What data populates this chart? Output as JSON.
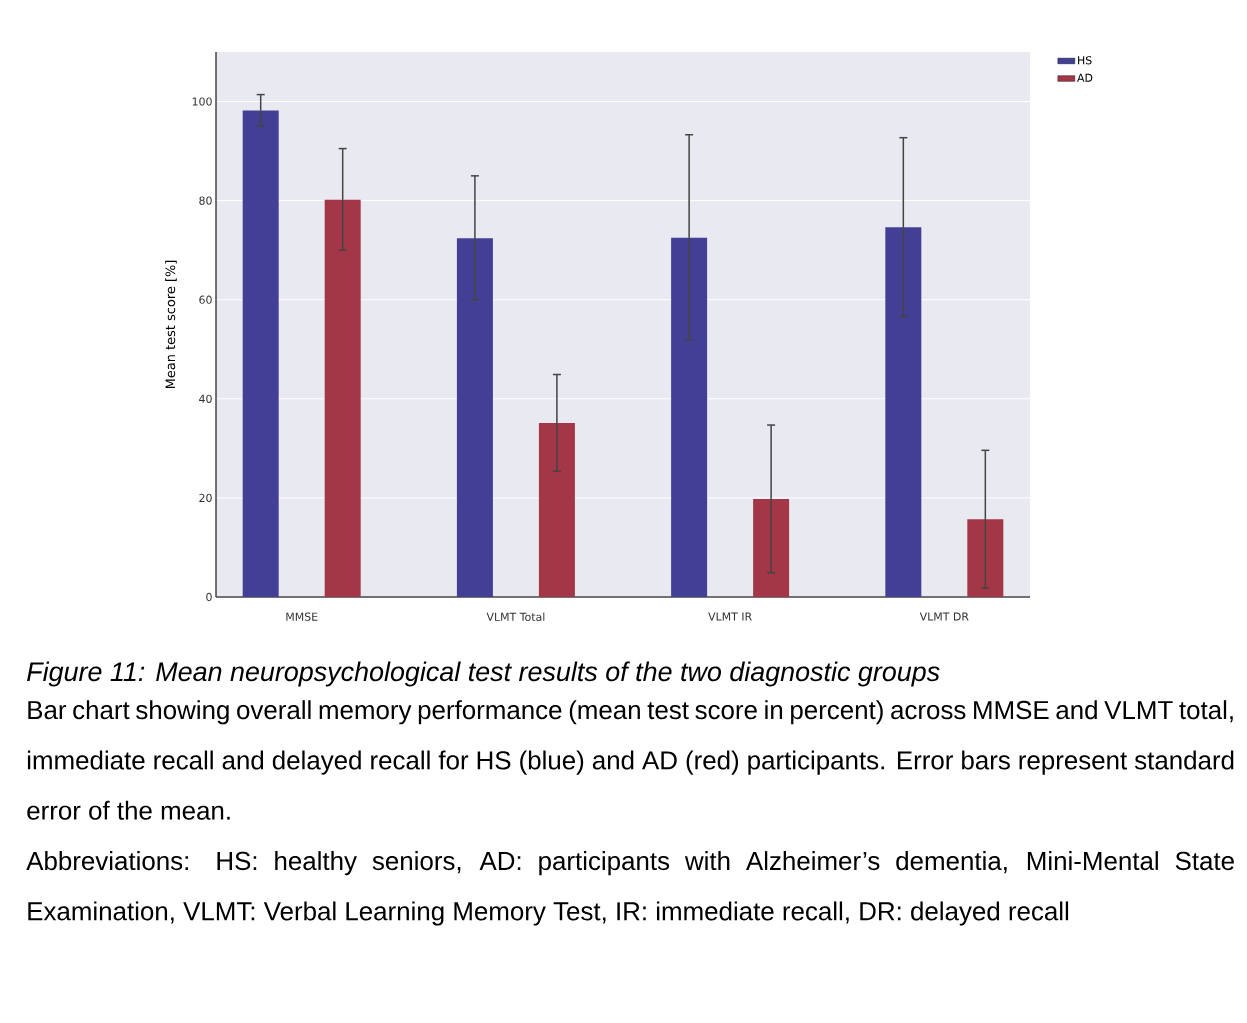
{
  "chart_data": {
    "type": "bar",
    "categories": [
      "MMSE",
      "VLMT Total",
      "VLMT IR",
      "VLMT DR"
    ],
    "series": [
      {
        "name": "HS",
        "color": "#423f94",
        "values": [
          98.2,
          72.4,
          72.5,
          74.6
        ],
        "errors": [
          [
            95.1,
            101.4
          ],
          [
            60.0,
            85.0
          ],
          [
            51.9,
            93.3
          ],
          [
            56.6,
            92.7
          ]
        ]
      },
      {
        "name": "AD",
        "color": "#a33748",
        "values": [
          80.2,
          35.1,
          19.8,
          15.7
        ],
        "errors": [
          [
            70.0,
            90.5
          ],
          [
            25.4,
            44.9
          ],
          [
            4.9,
            34.7
          ],
          [
            1.8,
            29.6
          ]
        ]
      }
    ],
    "ylabel": "Mean test score [%]",
    "ylim": [
      0,
      110
    ],
    "yticks": [
      0,
      20,
      40,
      60,
      80,
      100
    ],
    "grid": "y",
    "legend": "top right",
    "annotations": [
      "Figure 11: Mean neuropsychological test results of the two diagnostic groups",
      "Bar chart showing overall memory performance (mean test score in percent) across MMSE and VLMT total, immediate recall and delayed recall for HS (blue) and AD (red) participants. Error bars represent standard error of the mean.",
      "Abbreviations: HS: healthy seniors, AD: participants with Alzheimer’s dementia, Mini-Mental State Examination, VLMT: Verbal Learning Memory Test, IR: immediate recall, DR: delayed recall"
    ]
  }
}
